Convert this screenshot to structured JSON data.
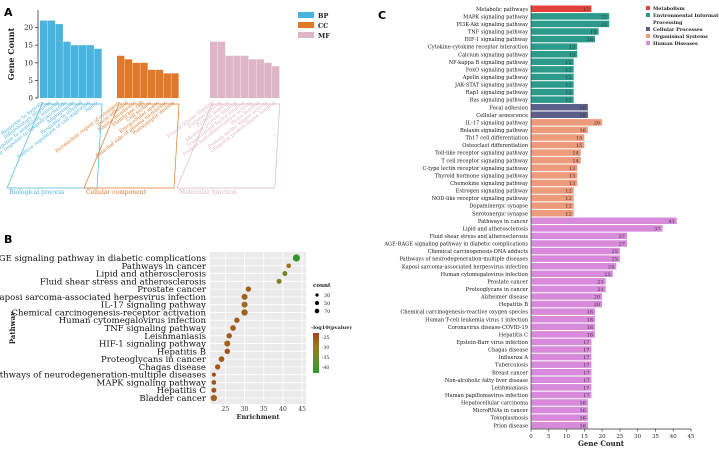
{
  "panels": {
    "a": "A",
    "b": "B",
    "c": "C"
  },
  "chart_data": [
    {
      "id": "A",
      "type": "bar",
      "ylabel": "Gene Count",
      "ylim": [
        0,
        25
      ],
      "yticks": [
        0,
        5,
        10,
        15,
        20
      ],
      "legend_position": "top-right",
      "legend": [
        {
          "label": "BP",
          "color": "#4AB4DE"
        },
        {
          "label": "CC",
          "color": "#E0782A"
        },
        {
          "label": "MF",
          "color": "#DDB5C5"
        }
      ],
      "groups": [
        {
          "name": "Biological process",
          "color": "#4AB4DE",
          "categories": [
            "Response to hypoxia",
            "Inflammatory response",
            "Response to xenobiotic stimulus",
            "Cellular response to lipopolysaccharide",
            "Angiogenesis",
            "Response to ethanol",
            "Positive regulation of cell migration",
            "Aging"
          ],
          "values": [
            22,
            22,
            21,
            16,
            15,
            15,
            15,
            14
          ]
        },
        {
          "name": "Cellular component",
          "color": "#E0782A",
          "categories": [
            "Perinuclear region of cytoplasm",
            "Focal adhesion",
            "Plasma membrane",
            "Membrane raft",
            "Cell surface",
            "Extracellular space",
            "External side of plasma membrane",
            "Postsynaptic density"
          ],
          "values": [
            12,
            11,
            10,
            10,
            8,
            8,
            7,
            7
          ]
        },
        {
          "name": "Molecular function",
          "color": "#DDB5C5",
          "categories": [
            "Protein kinase binding",
            "Enzyme binding",
            "Protein binding",
            "Identical protein binding",
            "Transcription factor binding",
            "Protein homodimerization activity",
            "Heme binding",
            "Protein serine kinase activity",
            "Ubiquitin protein ligase binding"
          ],
          "values": [
            16,
            16,
            12,
            12,
            12,
            11,
            11,
            10,
            9
          ]
        }
      ]
    },
    {
      "id": "B",
      "type": "scatter",
      "title": "",
      "xlabel": "Enrichment",
      "ylabel": "Pathway",
      "xlim": [
        21,
        46
      ],
      "xticks": [
        25,
        30,
        35,
        40,
        45
      ],
      "size_legend": {
        "title": "count",
        "values": [
          30,
          50,
          70
        ]
      },
      "color_legend": {
        "title": "-log10(pvalue)",
        "ticks": [
          "-25",
          "-30",
          "-35",
          "-40"
        ]
      },
      "categories": [
        "AGE-RAGE signaling pathway in diabetic complications",
        "Pathways in cancer",
        "Lipid and atherosclerosis",
        "Fluid shear stress and atherosclerosis",
        "Prostate cancer",
        "Kaposi sarcoma-associated herpesvirus infection",
        "IL-17 signaling pathway",
        "Chemical carcinogenesis-receptor activation",
        "Human cytomegalovirus infection",
        "TNF signaling pathway",
        "Leishmaniasis",
        "HIF-1 signaling pathway",
        "Hepatitis B",
        "Proteoglycans in cancer",
        "Chagas disease",
        "Pathways of neurodegeneration-multiple diseases",
        "MAPK signaling pathway",
        "Hepatitis C",
        "Bladder cancer"
      ],
      "x": [
        43.5,
        41.5,
        40.5,
        39,
        31,
        30,
        30,
        30,
        28,
        27,
        26,
        25.5,
        25.5,
        24,
        23,
        22,
        22,
        22,
        22
      ],
      "count": [
        60,
        20,
        25,
        25,
        30,
        40,
        40,
        45,
        30,
        35,
        30,
        40,
        30,
        35,
        30,
        15,
        20,
        25,
        45
      ],
      "neglog10p": [
        -42,
        -30,
        -34,
        -33,
        -28,
        -28,
        -29,
        -28,
        -27,
        -28,
        -27,
        -28,
        -26,
        -27,
        -27,
        -25,
        -26,
        -26,
        -28
      ]
    },
    {
      "id": "C",
      "type": "bar",
      "orientation": "horizontal",
      "xlabel": "Gene Count",
      "xlim": [
        0,
        45
      ],
      "xticks": [
        0,
        5,
        10,
        15,
        20,
        25,
        30,
        35,
        40,
        45
      ],
      "legend_position": "top-right",
      "legend": [
        {
          "label": "Metabolism",
          "color": "#E2423A"
        },
        {
          "label": "Environmental Information Processing",
          "color": "#2B9A8A"
        },
        {
          "label": "Cellular Processes",
          "color": "#5C5F8C"
        },
        {
          "label": "Organismal Systems",
          "color": "#EE9A7C"
        },
        {
          "label": "Human Diseases",
          "color": "#D88ADB"
        }
      ],
      "bars": [
        {
          "label": "Metabolic pathways",
          "value": 17,
          "group": 0
        },
        {
          "label": "MAPK signaling pathway",
          "value": 22,
          "group": 1
        },
        {
          "label": "PI3K-Akt signaling pathway",
          "value": 22,
          "group": 1
        },
        {
          "label": "TNF signaling pathway",
          "value": 19,
          "group": 1
        },
        {
          "label": "HIF-1 signaling pathway",
          "value": 18,
          "group": 1
        },
        {
          "label": "Cytokine-cytokine receptor interaction",
          "value": 13,
          "group": 1
        },
        {
          "label": "Calcium signaling pathway",
          "value": 13,
          "group": 1
        },
        {
          "label": "NF-kappa B signaling pathway",
          "value": 12,
          "group": 1
        },
        {
          "label": "FoxO signaling pathway",
          "value": 12,
          "group": 1
        },
        {
          "label": "Apelin signaling pathway",
          "value": 12,
          "group": 1
        },
        {
          "label": "JAK-STAT signaling pathway",
          "value": 12,
          "group": 1
        },
        {
          "label": "Rap1 signaling pathway",
          "value": 12,
          "group": 1
        },
        {
          "label": "Ras signaling pathway",
          "value": 12,
          "group": 1
        },
        {
          "label": "Focal adhesion",
          "value": 16,
          "group": 2
        },
        {
          "label": "Cellular senescence",
          "value": 16,
          "group": 2
        },
        {
          "label": "IL-17 signaling pathway",
          "value": 20,
          "group": 3
        },
        {
          "label": "Relaxin signaling pathway",
          "value": 16,
          "group": 3
        },
        {
          "label": "Th17 cell differentiation",
          "value": 15,
          "group": 3
        },
        {
          "label": "Osteoclast differentiation",
          "value": 15,
          "group": 3
        },
        {
          "label": "Toll-like receptor signaling pathway",
          "value": 14,
          "group": 3
        },
        {
          "label": "T cell receptor signaling pathway",
          "value": 14,
          "group": 3
        },
        {
          "label": "C-type lectin receptor signaling pathway",
          "value": 13,
          "group": 3
        },
        {
          "label": "Thyroid hormone signaling pathway",
          "value": 13,
          "group": 3
        },
        {
          "label": "Chemokine signaling pathway",
          "value": 13,
          "group": 3
        },
        {
          "label": "Estrogen signaling pathway",
          "value": 12,
          "group": 3
        },
        {
          "label": "NOD-like receptor signaling pathway",
          "value": 12,
          "group": 3
        },
        {
          "label": "Dopaminergic synapse",
          "value": 12,
          "group": 3
        },
        {
          "label": "Serotonergic synapse",
          "value": 12,
          "group": 3
        },
        {
          "label": "Pathways in cancer",
          "value": 41,
          "group": 4
        },
        {
          "label": "Lipid and atherosclerosis",
          "value": 37,
          "group": 4
        },
        {
          "label": "Fluid shear stress and atherosclerosis",
          "value": 27,
          "group": 4
        },
        {
          "label": "AGE-RAGE signaling pathway in diabetic complications",
          "value": 27,
          "group": 4
        },
        {
          "label": "Chemical carcinogenesis-DNA adducts",
          "value": 25,
          "group": 4
        },
        {
          "label": "Pathways of neurodegeneration-multiple diseases",
          "value": 25,
          "group": 4
        },
        {
          "label": "Kaposi sarcoma-associated herpesvirus infection",
          "value": 24,
          "group": 4
        },
        {
          "label": "Human cytomegalovirus infection",
          "value": 23,
          "group": 4
        },
        {
          "label": "Prostate cancer",
          "value": 21,
          "group": 4
        },
        {
          "label": "Proteoglycans in cancer",
          "value": 21,
          "group": 4
        },
        {
          "label": "Alzheimer disease",
          "value": 20,
          "group": 4
        },
        {
          "label": "Hepatitis B",
          "value": 20,
          "group": 4
        },
        {
          "label": "Chemical carcinogenesis-reactive oxygen species",
          "value": 18,
          "group": 4
        },
        {
          "label": "Human T-cell leukemia virus 1 infection",
          "value": 18,
          "group": 4
        },
        {
          "label": "Coronavirus disease-COVID-19",
          "value": 18,
          "group": 4
        },
        {
          "label": "Hepatitis C",
          "value": 18,
          "group": 4
        },
        {
          "label": "Epstein-Barr virus infection",
          "value": 17,
          "group": 4
        },
        {
          "label": "Chagas disease",
          "value": 17,
          "group": 4
        },
        {
          "label": "Influenza A",
          "value": 17,
          "group": 4
        },
        {
          "label": "Tuberculosis",
          "value": 17,
          "group": 4
        },
        {
          "label": "Breast cancer",
          "value": 17,
          "group": 4
        },
        {
          "label": "Non-alcoholic fatty liver disease",
          "value": 17,
          "group": 4
        },
        {
          "label": "Leishmaniasis",
          "value": 17,
          "group": 4
        },
        {
          "label": "Human papillomavirus infection",
          "value": 17,
          "group": 4
        },
        {
          "label": "Hepatocellular carcinoma",
          "value": 16,
          "group": 4
        },
        {
          "label": "MicroRNAs in cancer",
          "value": 16,
          "group": 4
        },
        {
          "label": "Toxoplasmosis",
          "value": 16,
          "group": 4
        },
        {
          "label": "Prion disease",
          "value": 16,
          "group": 4
        }
      ]
    }
  ]
}
